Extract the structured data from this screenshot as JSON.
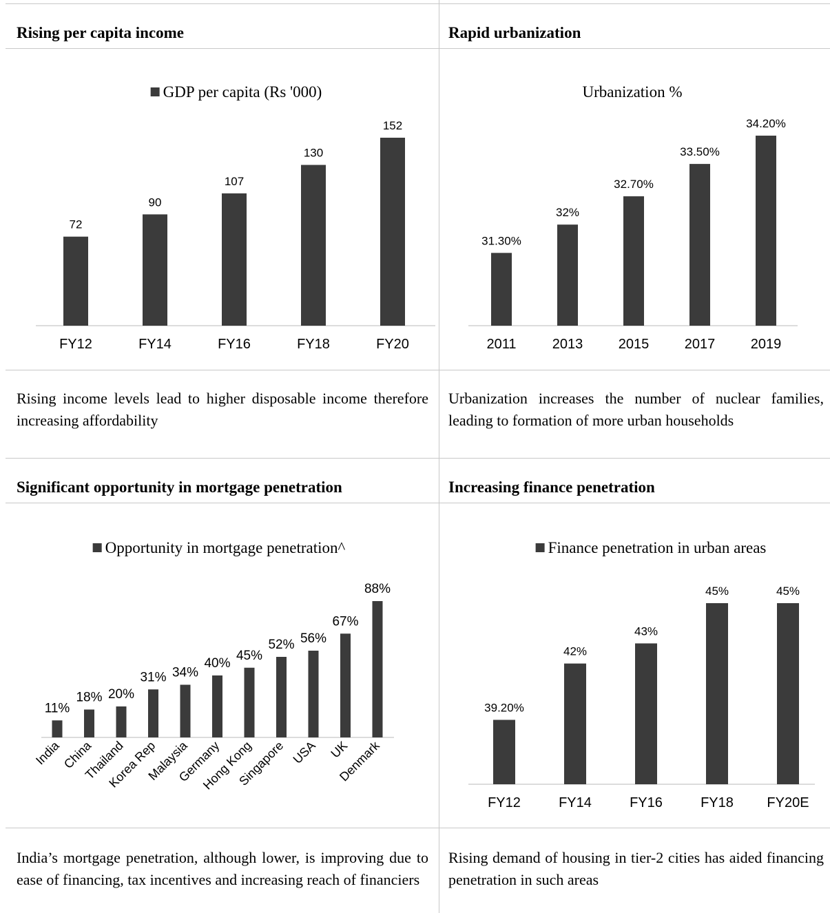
{
  "panels": [
    {
      "heading": "Rising per capita income",
      "description": "Rising income levels lead to higher disposable income therefore increasing affordability"
    },
    {
      "heading": "Rapid urbanization",
      "description": "Urbanization increases the number of nuclear families, leading to formation of more urban households"
    },
    {
      "heading": "Significant opportunity in mortgage penetration",
      "description": "India’s mortgage penetration, although lower, is improving due to ease of financing, tax incentives and increasing reach of financiers"
    },
    {
      "heading": "Increasing finance penetration",
      "description": "Rising demand of housing in tier-2 cities has aided financing penetration in such areas"
    }
  ],
  "colors": {
    "bar": "#3b3b3b",
    "axis": "#d0d0d0",
    "border": "#c8c8c8"
  },
  "chart_data": [
    {
      "type": "bar",
      "title": "",
      "legend": "GDP per capita (Rs '000)",
      "legend_position": "top",
      "categories": [
        "FY12",
        "FY14",
        "FY16",
        "FY18",
        "FY20"
      ],
      "values": [
        72,
        90,
        107,
        130,
        152
      ],
      "labels": [
        "72",
        "90",
        "107",
        "130",
        "152"
      ],
      "ylim": [
        0,
        152
      ],
      "grid": false
    },
    {
      "type": "bar",
      "title": "Urbanization %",
      "legend": "",
      "categories": [
        "2011",
        "2013",
        "2015",
        "2017",
        "2019"
      ],
      "values": [
        31.3,
        32.0,
        32.7,
        33.5,
        34.2
      ],
      "labels": [
        "31.30%",
        "32%",
        "32.70%",
        "33.50%",
        "34.20%"
      ],
      "ylim": [
        29.5,
        34.2
      ],
      "grid": false
    },
    {
      "type": "bar",
      "title": "",
      "legend": "Opportunity in mortgage penetration^",
      "legend_position": "top",
      "categories": [
        "India",
        "China",
        "Thailand",
        "Korea Rep",
        "Malaysia",
        "Germany",
        "Hong Kong",
        "Singapore",
        "USA",
        "UK",
        "Denmark"
      ],
      "values": [
        11,
        18,
        20,
        31,
        34,
        40,
        45,
        52,
        56,
        67,
        88
      ],
      "labels": [
        "11%",
        "18%",
        "20%",
        "31%",
        "34%",
        "40%",
        "45%",
        "52%",
        "56%",
        "67%",
        "88%"
      ],
      "ylim": [
        0,
        88
      ],
      "grid": false
    },
    {
      "type": "bar",
      "title": "",
      "legend": "Finance penetration in urban areas",
      "legend_position": "top",
      "categories": [
        "FY12",
        "FY14",
        "FY16",
        "FY18",
        "FY20E"
      ],
      "values": [
        39.2,
        42,
        43,
        45,
        45
      ],
      "labels": [
        "39.20%",
        "42%",
        "43%",
        "45%",
        "45%"
      ],
      "ylim": [
        36,
        45
      ],
      "grid": false
    }
  ]
}
